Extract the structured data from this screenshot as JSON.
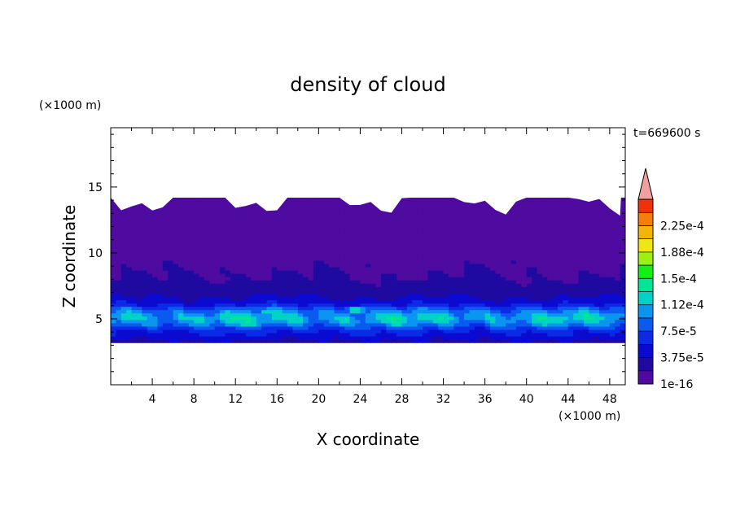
{
  "chart_data": {
    "type": "heatmap",
    "title": "density of cloud",
    "xlabel": "X coordinate",
    "ylabel": "Z coordinate",
    "x_unit": "(×1000 m)",
    "y_unit": "(×1000 m)",
    "time_label": "t=669600 s",
    "xlim": [
      0,
      49.5
    ],
    "ylim": [
      0,
      19.5
    ],
    "x_ticks": [
      4,
      8,
      12,
      16,
      20,
      24,
      28,
      32,
      36,
      40,
      44,
      48
    ],
    "y_ticks": [
      5,
      10,
      15
    ],
    "colorbar": {
      "labels": [
        "1e-16",
        "3.75e-5",
        "7.5e-5",
        "1.12e-4",
        "1.5e-4",
        "1.88e-4",
        "2.25e-4"
      ],
      "levels": [
        1e-16,
        1.875e-05,
        3.75e-05,
        5.625e-05,
        7.5e-05,
        9.375e-05,
        0.000112,
        0.000131,
        0.00015,
        0.000169,
        0.000188,
        0.000206,
        0.000225,
        0.000244
      ],
      "colors": [
        "#4f0aa0",
        "#1f0aa0",
        "#0a0ad0",
        "#0a2ae6",
        "#0a5af0",
        "#0a96f0",
        "#00d2c8",
        "#00e696",
        "#14f014",
        "#9bf014",
        "#f0e614",
        "#f5b40a",
        "#f57d0a",
        "#f0320a"
      ],
      "overflow_color": "#f0a0a0"
    },
    "cloud_base_km": 3.2,
    "cloud_top_km": 14.2,
    "profile": {
      "z_km": [
        3.2,
        3.6,
        4.2,
        4.6,
        5.0,
        5.4,
        5.8,
        6.2,
        7.0,
        8.0,
        9.5,
        11.0,
        14.2
      ],
      "density": [
        3e-05,
        4.5e-05,
        6.5e-05,
        9.5e-05,
        0.000115,
        0.000105,
        8e-05,
        5e-05,
        3e-05,
        2e-05,
        1.5e-05,
        5e-06,
        1e-16
      ]
    },
    "local_max": [
      {
        "x": 15.0,
        "z": 5.6,
        "density": 0.000135
      },
      {
        "x": 23.6,
        "z": 5.7,
        "density": 0.000145
      }
    ]
  }
}
